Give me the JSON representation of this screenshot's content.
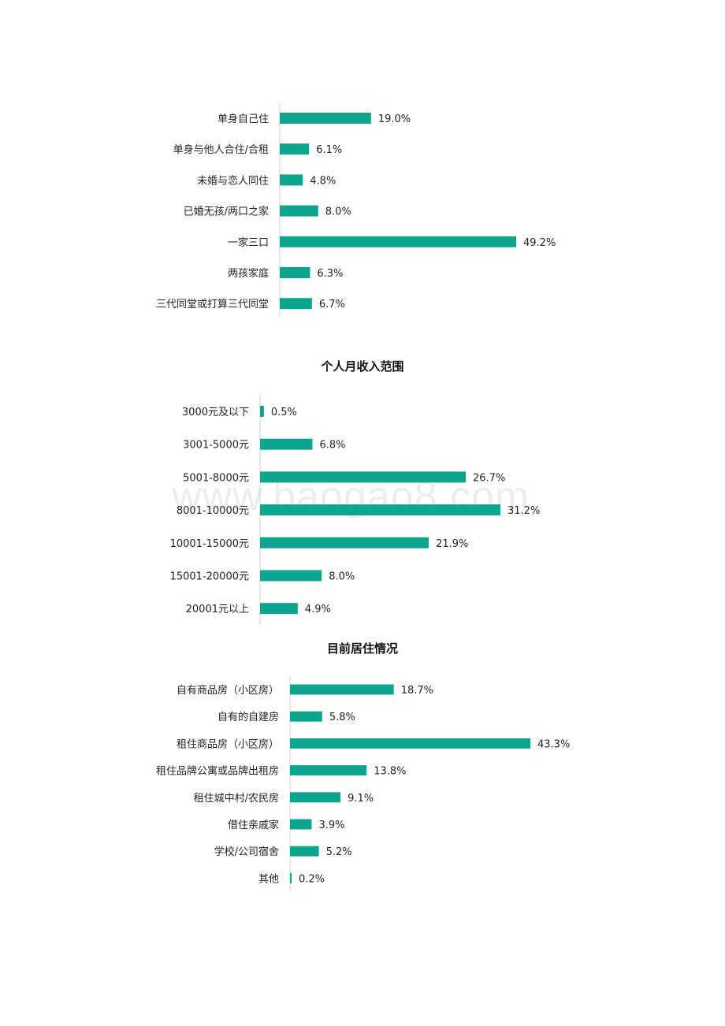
{
  "watermark": "www.baogao8.com",
  "chart_data": [
    {
      "type": "bar",
      "orientation": "horizontal",
      "title": "",
      "color": "#0ea58f",
      "categories": [
        "单身自己住",
        "单身与他人合住/合租",
        "未婚与恋人同住",
        "已婚无孩/两口之家",
        "一家三口",
        "两孩家庭",
        "三代同堂或打算三代同堂"
      ],
      "values": [
        19.0,
        6.1,
        4.8,
        8.0,
        49.2,
        6.3,
        6.7
      ],
      "value_labels": [
        "19.0%",
        "6.1%",
        "4.8%",
        "8.0%",
        "49.2%",
        "6.3%",
        "6.7%"
      ],
      "xlim": [
        0,
        50
      ],
      "grid": false
    },
    {
      "type": "bar",
      "orientation": "horizontal",
      "title": "个人月收入范围",
      "color": "#0ea58f",
      "categories": [
        "3000元及以下",
        "3001-5000元",
        "5001-8000元",
        "8001-10000元",
        "10001-15000元",
        "15001-20000元",
        "20001元以上"
      ],
      "values": [
        0.5,
        6.8,
        26.7,
        31.2,
        21.9,
        8.0,
        4.9
      ],
      "value_labels": [
        "0.5%",
        "6.8%",
        "26.7%",
        "31.2%",
        "21.9%",
        "8.0%",
        "4.9%"
      ],
      "xlim": [
        0,
        35
      ],
      "grid": false
    },
    {
      "type": "bar",
      "orientation": "horizontal",
      "title": "目前居住情况",
      "color": "#0ea58f",
      "categories": [
        "自有商品房（小区房）",
        "自有的自建房",
        "租住商品房（小区房）",
        "租住品牌公寓或品牌出租房",
        "租住城中村/农民房",
        "借住亲戚家",
        "学校/公司宿舍",
        "其他"
      ],
      "values": [
        18.7,
        5.8,
        43.3,
        13.8,
        9.1,
        3.9,
        5.2,
        0.2
      ],
      "value_labels": [
        "18.7%",
        "5.8%",
        "43.3%",
        "13.8%",
        "9.1%",
        "3.9%",
        "5.2%",
        "0.2%"
      ],
      "xlim": [
        0,
        50
      ],
      "grid": false
    }
  ]
}
